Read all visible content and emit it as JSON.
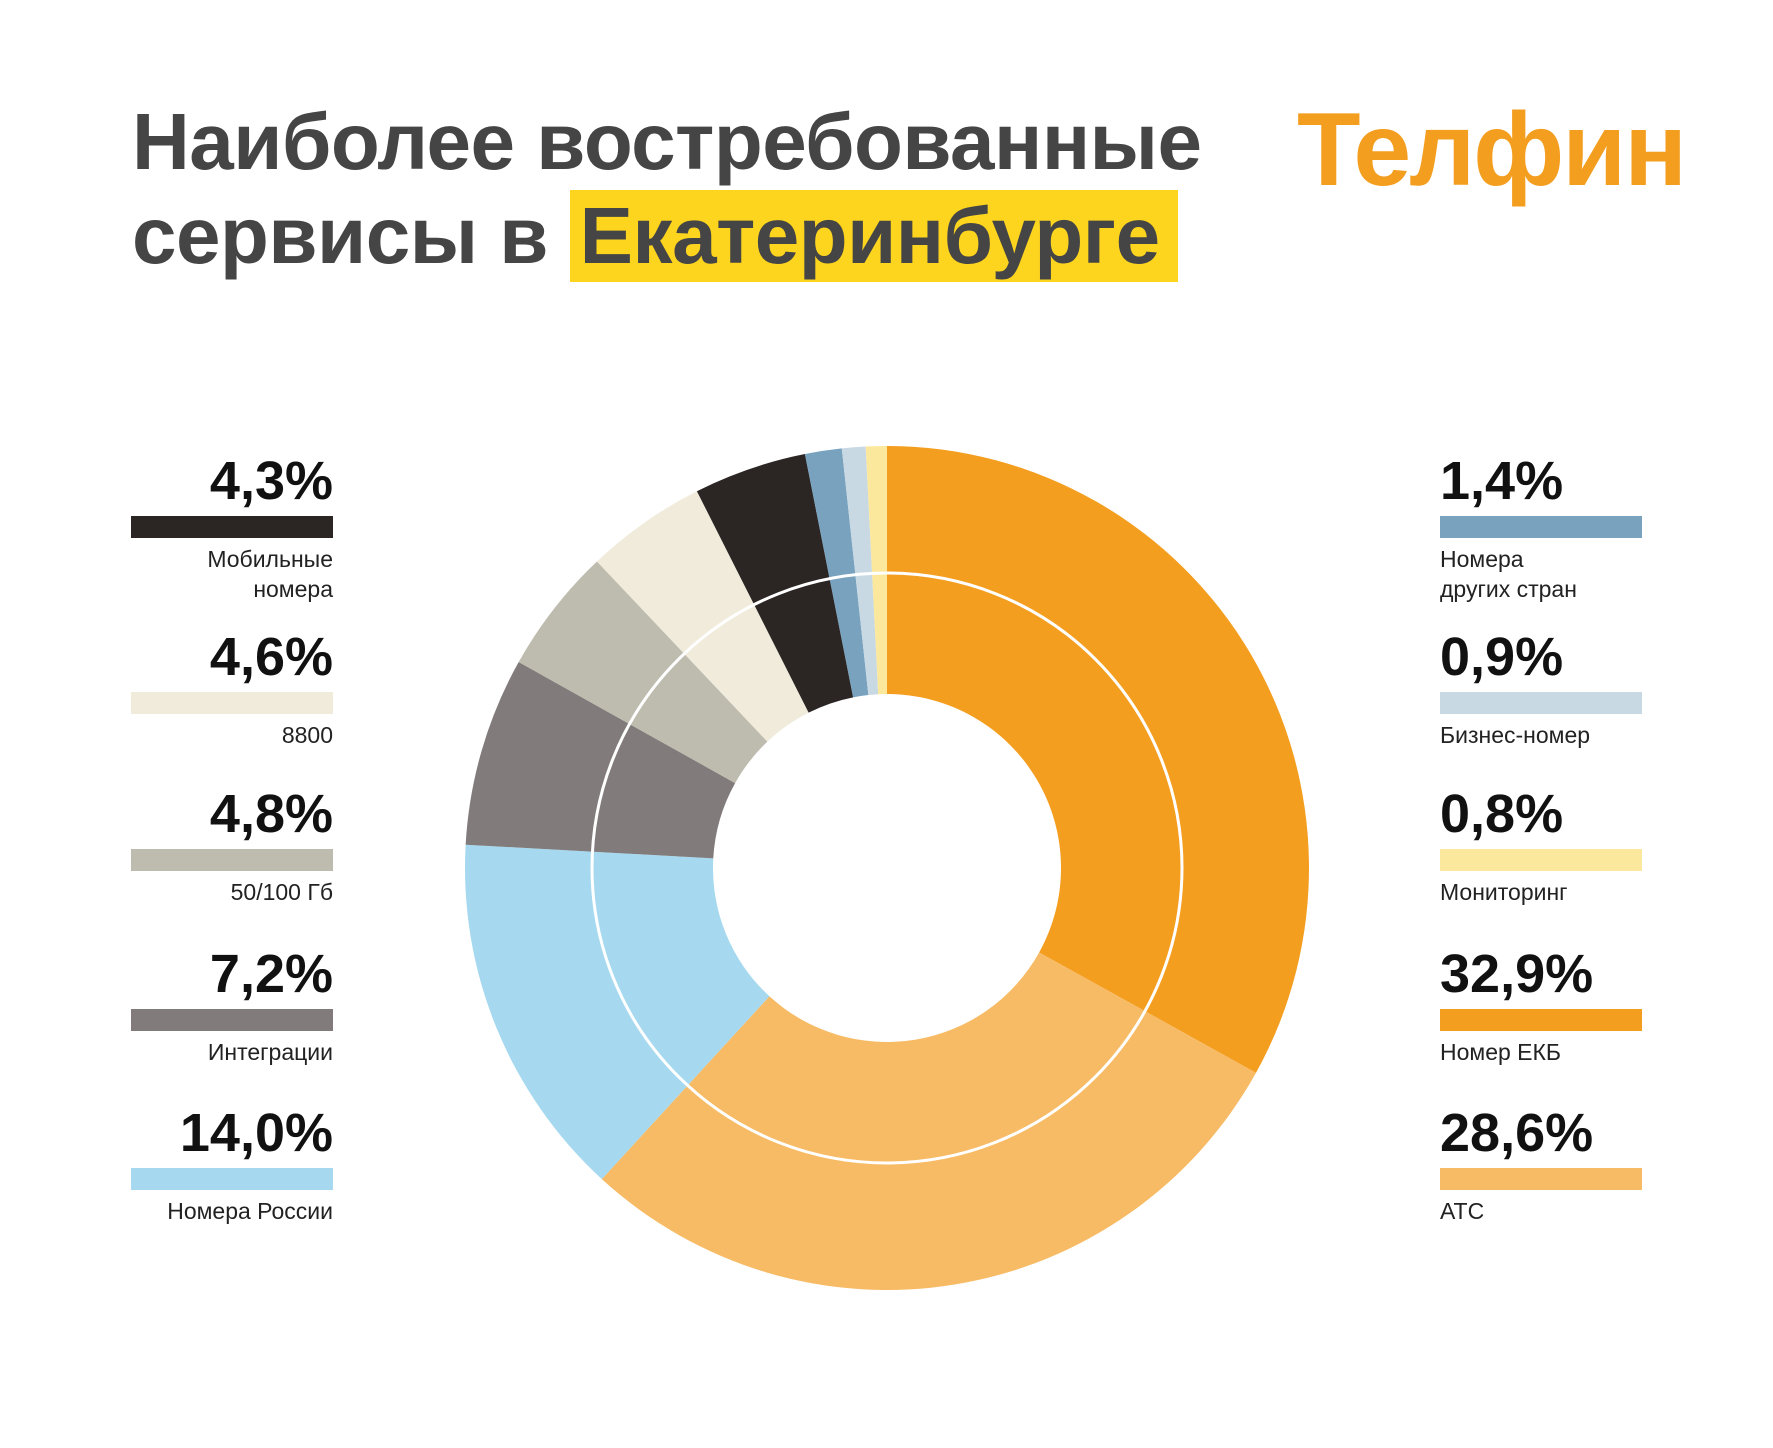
{
  "header": {
    "title_line1": "Наиболее востребованные",
    "title_line2_prefix": "сервисы в",
    "title_highlight": "Екатеринбурге",
    "logo": "Телфин"
  },
  "colors": {
    "title": "#454545",
    "highlight": "#fdd51f",
    "logo": "#f49e20"
  },
  "legend": {
    "left": [
      {
        "pct": "4,3%",
        "label": "Мобильные\nномера",
        "color": "#2b2624"
      },
      {
        "pct": "4,6%",
        "label": "8800",
        "color": "#f0ebdb"
      },
      {
        "pct": "4,8%",
        "label": "50/100 Гб",
        "color": "#bebcae"
      },
      {
        "pct": "7,2%",
        "label": "Интеграции",
        "color": "#817c7b"
      },
      {
        "pct": "14,0%",
        "label": "Номера России",
        "color": "#a6d9ef"
      }
    ],
    "right": [
      {
        "pct": "1,4%",
        "label": "Номера\nдругих стран",
        "color": "#78a2be"
      },
      {
        "pct": "0,9%",
        "label": "Бизнес-номер",
        "color": "#c8d9e4"
      },
      {
        "pct": "0,8%",
        "label": "Мониторинг",
        "color": "#fce89c"
      },
      {
        "pct": "32,9%",
        "label": "Номер ЕКБ",
        "color": "#f49e20"
      },
      {
        "pct": "28,6%",
        "label": "АТС",
        "color": "#f7bb65"
      }
    ]
  },
  "chart_data": {
    "type": "pie",
    "variant": "donut",
    "start": "top",
    "direction": "clockwise",
    "values": [
      32.9,
      28.6,
      14.0,
      7.2,
      4.8,
      4.6,
      4.3,
      1.4,
      0.9,
      0.8
    ],
    "labels": [
      "Номер ЕКБ",
      "АТС",
      "Номера России",
      "Интеграции",
      "50/100 Гб",
      "8800",
      "Мобильные номера",
      "Номера других стран",
      "Бизнес-номер",
      "Мониторинг"
    ],
    "colors": [
      "#f49e20",
      "#f7bb65",
      "#a6d9ef",
      "#817c7b",
      "#bebcae",
      "#f0ebdb",
      "#2b2624",
      "#78a2be",
      "#c8d9e4",
      "#fce89c"
    ]
  }
}
